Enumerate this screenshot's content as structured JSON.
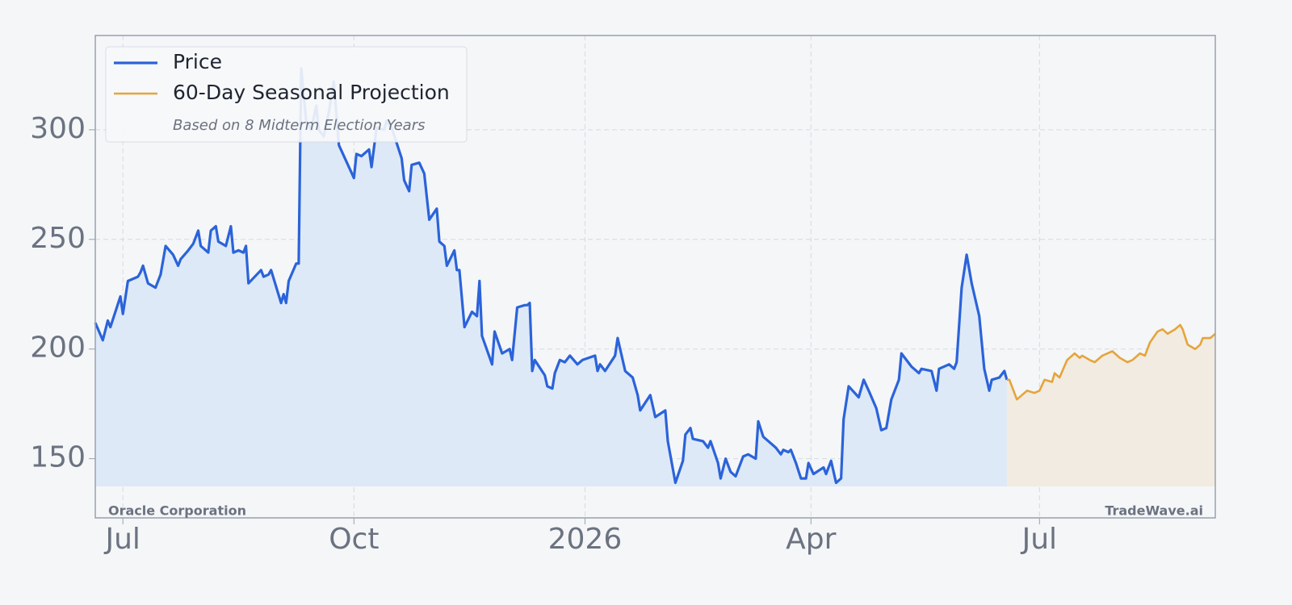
{
  "chart_data": {
    "type": "line",
    "company": "Oracle Corporation",
    "watermark": "TradeWave.ai",
    "legend_note": "Based on 8 Midterm Election Years",
    "legend": "upper left",
    "grid": true,
    "xlim": [
      -11,
      435
    ],
    "xticks": [
      {
        "value": 0,
        "label": "Jul"
      },
      {
        "value": 92,
        "label": "Oct"
      },
      {
        "value": 184,
        "label": "2026"
      },
      {
        "value": 274,
        "label": "Apr"
      },
      {
        "value": 365,
        "label": "Jul"
      }
    ],
    "ylim": [
      123,
      343
    ],
    "yticks": [
      150,
      200,
      250,
      300
    ],
    "series": [
      {
        "name": "Price",
        "color": "#2b63d9",
        "fill": "#dde9f7",
        "x": [
          -11,
          -8,
          -6,
          -5,
          -1,
          0,
          2,
          6,
          7,
          8,
          10,
          13,
          15,
          17,
          20,
          22,
          23,
          26,
          28,
          30,
          31,
          34,
          35,
          37,
          38,
          41,
          43,
          44,
          46,
          48,
          49,
          50,
          55,
          56,
          58,
          59,
          63,
          64,
          65,
          66,
          69,
          70,
          71,
          73,
          75,
          77,
          78,
          80,
          82,
          84,
          86,
          90,
          92,
          93,
          95,
          98,
          99,
          101,
          104,
          105,
          107,
          109,
          111,
          112,
          114,
          115,
          118,
          120,
          122,
          125,
          126,
          128,
          129,
          132,
          133,
          134,
          136,
          139,
          141,
          142,
          143,
          147,
          148,
          151,
          154,
          155,
          157,
          160,
          161,
          162,
          163,
          164,
          168,
          169,
          171,
          172,
          174,
          176,
          178,
          181,
          183,
          188,
          189,
          190,
          192,
          196,
          197,
          198,
          200,
          203,
          205,
          206,
          210,
          212,
          216,
          217,
          220,
          223,
          224,
          226,
          227,
          231,
          233,
          234,
          237,
          238,
          240,
          242,
          244,
          247,
          249,
          252,
          253,
          255,
          258,
          260,
          262,
          263,
          265,
          266,
          268,
          270,
          272,
          273,
          275,
          279,
          280,
          282,
          284,
          286,
          287,
          289,
          293,
          295,
          297,
          300,
          302,
          304,
          306,
          309,
          310,
          314,
          317,
          318,
          322,
          324,
          325,
          329,
          331,
          332,
          334,
          336,
          338,
          341,
          343,
          345,
          346,
          349,
          351,
          352
        ],
        "values": [
          212,
          204,
          213,
          210,
          224,
          216,
          231,
          233,
          235,
          238,
          230,
          228,
          234,
          247,
          243,
          238,
          241,
          245,
          248,
          254,
          247,
          244,
          254,
          256,
          249,
          247,
          256,
          244,
          245,
          244,
          247,
          230,
          236,
          233,
          234,
          236,
          221,
          225,
          221,
          231,
          239,
          239,
          328,
          304,
          300,
          311,
          300,
          297,
          308,
          322,
          293,
          283,
          278,
          289,
          288,
          291,
          283,
          301,
          300,
          304,
          301,
          294,
          287,
          277,
          272,
          284,
          285,
          280,
          259,
          264,
          249,
          247,
          238,
          245,
          236,
          236,
          210,
          217,
          215,
          231,
          206,
          193,
          208,
          198,
          200,
          195,
          219,
          220,
          220,
          221,
          190,
          195,
          188,
          183,
          182,
          189,
          195,
          194,
          197,
          193,
          195,
          197,
          190,
          193,
          190,
          197,
          205,
          200,
          190,
          187,
          179,
          172,
          179,
          169,
          172,
          158,
          139,
          149,
          161,
          164,
          159,
          158,
          155,
          158,
          148,
          141,
          150,
          144,
          142,
          151,
          152,
          150,
          167,
          160,
          157,
          155,
          152,
          154,
          153,
          154,
          148,
          141,
          141,
          148,
          143,
          146,
          143,
          149,
          139,
          141,
          168,
          183,
          178,
          186,
          181,
          173,
          163,
          164,
          177,
          186,
          198,
          192,
          189,
          191,
          190,
          181,
          191,
          193,
          191,
          194,
          228,
          243,
          230,
          215,
          191,
          181,
          186,
          187,
          190,
          186
        ]
      },
      {
        "name": "60-Day Seasonal Projection",
        "color": "#e6a43a",
        "fill": "#f1ebe2",
        "x": [
          352,
          353,
          356,
          358,
          360,
          363,
          365,
          367,
          370,
          371,
          373,
          376,
          379,
          381,
          382,
          385,
          387,
          390,
          394,
          397,
          400,
          402,
          405,
          407,
          409,
          412,
          414,
          416,
          419,
          421,
          422,
          424,
          427,
          429,
          430,
          433,
          435
        ],
        "values": [
          186,
          186,
          177,
          179,
          181,
          180,
          181,
          186,
          185,
          189,
          187,
          195,
          198,
          196,
          197,
          195,
          194,
          197,
          199,
          196,
          194,
          195,
          198,
          197,
          203,
          208,
          209,
          207,
          209,
          211,
          209,
          202,
          200,
          202,
          205,
          205,
          207
        ]
      }
    ]
  }
}
